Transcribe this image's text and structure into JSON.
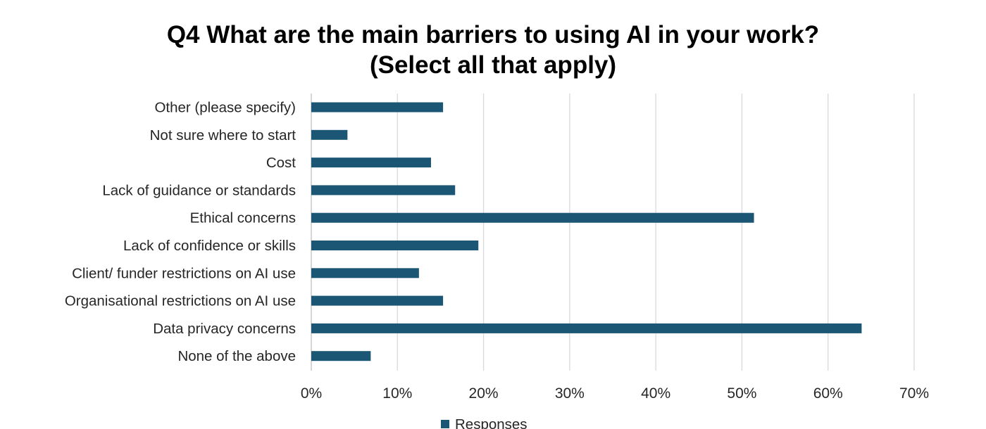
{
  "chart_data": {
    "type": "bar",
    "orientation": "horizontal",
    "title_line1": "Q4 What are the main barriers to using AI in your work?",
    "title_line2": "(Select all that apply)",
    "categories": [
      "Other (please specify)",
      "Not sure where to start",
      "Cost",
      "Lack of guidance or standards",
      "Ethical concerns",
      "Lack of confidence or skills",
      "Client/ funder restrictions on AI use",
      "Organisational restrictions on AI use",
      "Data privacy concerns",
      "None of the above"
    ],
    "series": [
      {
        "name": "Responses",
        "values": [
          15.3,
          4.2,
          13.9,
          16.7,
          51.4,
          19.4,
          12.5,
          15.3,
          63.9,
          6.9
        ]
      }
    ],
    "xlim": [
      0,
      70
    ],
    "x_ticks": [
      0,
      10,
      20,
      30,
      40,
      50,
      60,
      70
    ],
    "x_tick_labels": [
      "0%",
      "10%",
      "20%",
      "30%",
      "40%",
      "50%",
      "60%",
      "70%"
    ],
    "grid": "vertical",
    "legend": "bottom",
    "bar_color": "#1b5675",
    "grid_color": "#d9d9d9"
  }
}
